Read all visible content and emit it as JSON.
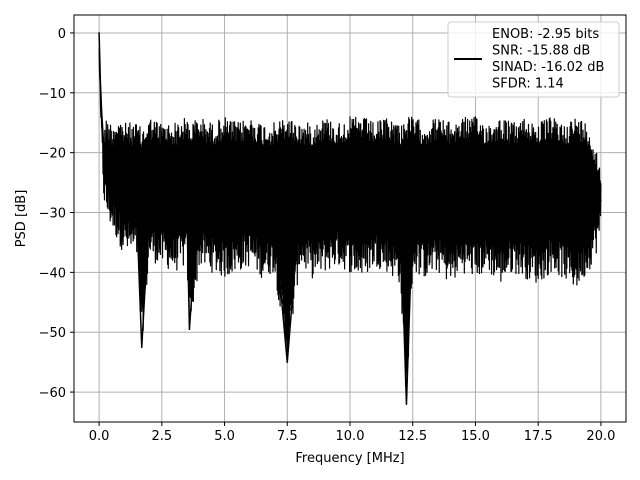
{
  "chart_data": {
    "type": "line",
    "xlabel": "Frequency [MHz]",
    "ylabel": "PSD [dB]",
    "xlim": [
      -1.0,
      21.0
    ],
    "ylim": [
      -65.0,
      3.0
    ],
    "xticks": [
      0.0,
      2.5,
      5.0,
      7.5,
      10.0,
      12.5,
      15.0,
      17.5,
      20.0
    ],
    "xtick_labels": [
      "0.0",
      "2.5",
      "5.0",
      "7.5",
      "10.0",
      "12.5",
      "15.0",
      "17.5",
      "20.0"
    ],
    "yticks": [
      0,
      -10,
      -20,
      -30,
      -40,
      -50,
      -60
    ],
    "ytick_labels": [
      "0",
      "−10",
      "−20",
      "−30",
      "−40",
      "−50",
      "−60"
    ],
    "grid": true,
    "legend_location": "top-right",
    "line_color": "#000000",
    "legend": {
      "entries": [
        "ENOB: -2.95 bits",
        "SNR: -15.88 dB",
        "SINAD: -16.02 dB",
        "SFDR: 1.14"
      ]
    },
    "series": [
      {
        "x": [
          0.0,
          0.05,
          0.1,
          0.2,
          0.3,
          0.5,
          0.75,
          1.0,
          1.5,
          1.7,
          2.0,
          2.5,
          3.0,
          3.5,
          3.6,
          4.0,
          4.5,
          5.0,
          5.5,
          6.0,
          6.5,
          7.0,
          7.5,
          8.0,
          8.5,
          9.0,
          9.5,
          10.0,
          10.5,
          11.0,
          11.5,
          12.0,
          12.25,
          12.5,
          13.0,
          13.5,
          14.0,
          14.5,
          15.0,
          15.5,
          16.0,
          16.5,
          17.0,
          17.5,
          18.0,
          18.5,
          19.0,
          19.5,
          20.0
        ],
        "y": [
          0,
          -8,
          -13,
          -20,
          -24,
          -26,
          -22,
          -27,
          -30,
          -52.5,
          -30,
          -28,
          -33,
          -30,
          -49.5,
          -25,
          -31,
          -26,
          -28,
          -30,
          -27,
          -32,
          -55,
          -29,
          -31,
          -27,
          -33,
          -28,
          -30,
          -26,
          -32,
          -29,
          -62,
          -30,
          -28,
          -31,
          -27,
          -30,
          -29,
          -33,
          -27,
          -30,
          -28,
          -31,
          -29,
          -32,
          -27,
          -30,
          -28
        ],
        "upper": [
          0,
          -9,
          -13,
          -16,
          -14,
          -15,
          -14,
          -15,
          -15,
          -16,
          -14,
          -15,
          -15,
          -14,
          -15,
          -14,
          -15,
          -14,
          -15,
          -14,
          -15,
          -15,
          -14,
          -15,
          -15,
          -14,
          -15,
          -14,
          -14,
          -15,
          -14,
          -15,
          -14,
          -14,
          -15,
          -14,
          -15,
          -14,
          -14,
          -15,
          -14,
          -15,
          -14,
          -15,
          -14,
          -15,
          -14,
          -15,
          -22
        ],
        "lower": [
          -5,
          -16,
          -21,
          -29,
          -31,
          -33,
          -35,
          -37,
          -38,
          -52.5,
          -38,
          -39,
          -40,
          -39,
          -49.5,
          -39,
          -40,
          -41,
          -40,
          -39,
          -41,
          -40,
          -55,
          -39,
          -41,
          -40,
          -39,
          -40,
          -41,
          -39,
          -40,
          -42,
          -62,
          -40,
          -41,
          -40,
          -42,
          -40,
          -41,
          -40,
          -42,
          -40,
          -41,
          -42,
          -40,
          -41,
          -43,
          -40,
          -35
        ]
      }
    ]
  }
}
